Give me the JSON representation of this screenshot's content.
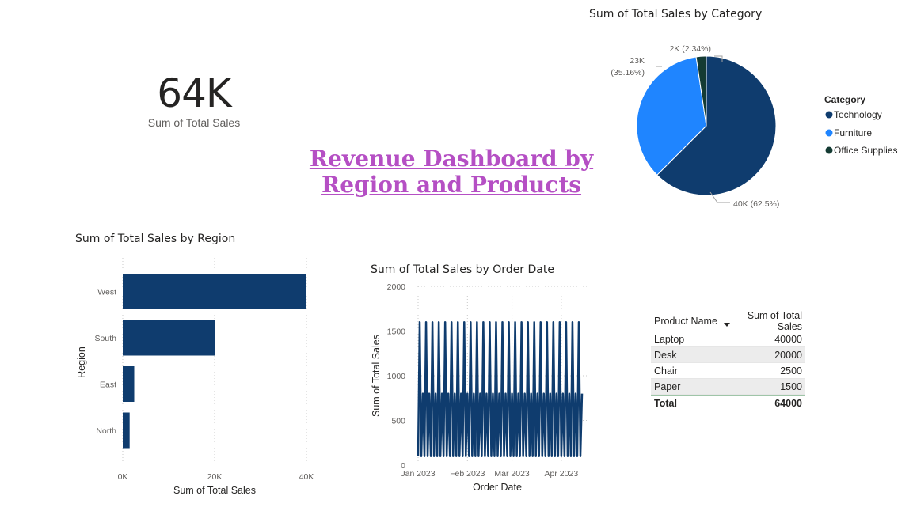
{
  "kpi": {
    "value": "64K",
    "label": "Sum of Total Sales"
  },
  "dashboard_title": {
    "line1": "Revenue Dashboard by ",
    "line2": "Region and Products"
  },
  "colors": {
    "dark_blue": "#0f3c6e",
    "blue": "#1f85ff",
    "dark_green": "#143b33",
    "title": "#b54fc4"
  },
  "chart_data": [
    {
      "type": "pie",
      "title": "Sum of Total Sales by Category",
      "legend_title": "Category",
      "legend_position": "right",
      "slices": [
        {
          "name": "Technology",
          "value": 40000,
          "label": "40K (62.5%)",
          "color": "#0f3c6e"
        },
        {
          "name": "Furniture",
          "value": 22500,
          "label_line1": "23K",
          "label_line2": "(35.16%)",
          "color": "#1f85ff"
        },
        {
          "name": "Office Supplies",
          "value": 1500,
          "label": "2K (2.34%)",
          "color": "#143b33"
        }
      ]
    },
    {
      "type": "bar",
      "orientation": "horizontal",
      "title": "Sum of Total Sales by Region",
      "xlabel": "Sum of Total Sales",
      "ylabel": "Region",
      "categories": [
        "West",
        "South",
        "East",
        "North"
      ],
      "values": [
        40000,
        20000,
        2500,
        1500
      ],
      "xlim": [
        0,
        40000
      ],
      "xticks": [
        "0K",
        "20K",
        "40K"
      ],
      "color": "#0f3c6e"
    },
    {
      "type": "line",
      "title": "Sum of Total Sales by Order Date",
      "xlabel": "Order Date",
      "ylabel": "Sum of Total Sales",
      "ylim": [
        0,
        2000
      ],
      "yticks": [
        "0",
        "500",
        "1000",
        "1500",
        "2000"
      ],
      "xticks": [
        "Jan 2023",
        "Feb 2023",
        "Mar 2023",
        "Apr 2023"
      ],
      "start_date": "2023-01-01",
      "end_date": "2023-04-14",
      "pattern_values": [
        100,
        1600,
        100,
        800
      ],
      "color": "#0f3c6e"
    },
    {
      "type": "table",
      "columns": [
        "Product Name",
        "Sum of Total Sales"
      ],
      "rows": [
        [
          "Laptop",
          "40000"
        ],
        [
          "Desk",
          "20000"
        ],
        [
          "Chair",
          "2500"
        ],
        [
          "Paper",
          "1500"
        ]
      ],
      "total": [
        "Total",
        "64000"
      ]
    }
  ]
}
